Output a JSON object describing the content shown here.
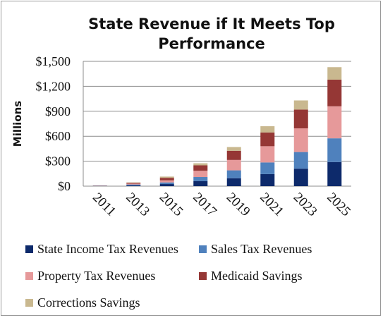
{
  "chart_data": {
    "type": "bar",
    "stacked": true,
    "title": "State Revenue if It Meets Top Performance",
    "ylabel": "Millions",
    "xlabel": "",
    "categories": [
      "2011",
      "2013",
      "2015",
      "2017",
      "2019",
      "2021",
      "2023",
      "2025"
    ],
    "ylim": [
      0,
      1500
    ],
    "yticks": [
      "$0",
      "$300",
      "$600",
      "$900",
      "$1,200",
      "$1,500"
    ],
    "ytick_values": [
      0,
      300,
      600,
      900,
      1200,
      1500
    ],
    "grid": true,
    "legend_position": "bottom",
    "series": [
      {
        "name": "State Income Tax Revenues",
        "color": "#0d2a6b",
        "values": [
          2,
          10,
          25,
          60,
          95,
          145,
          210,
          290
        ]
      },
      {
        "name": "Sales Tax Revenues",
        "color": "#4f81bd",
        "values": [
          2,
          10,
          20,
          50,
          95,
          140,
          200,
          285
        ]
      },
      {
        "name": "Property Tax Revenues",
        "color": "#e6999a",
        "values": [
          2,
          10,
          25,
          75,
          125,
          195,
          285,
          385
        ]
      },
      {
        "name": "Medicaid Savings",
        "color": "#953735",
        "values": [
          2,
          10,
          30,
          65,
          110,
          165,
          225,
          320
        ]
      },
      {
        "name": "Corrections Savings",
        "color": "#c9b88f",
        "values": [
          1,
          5,
          15,
          25,
          45,
          75,
          110,
          150
        ]
      }
    ]
  }
}
